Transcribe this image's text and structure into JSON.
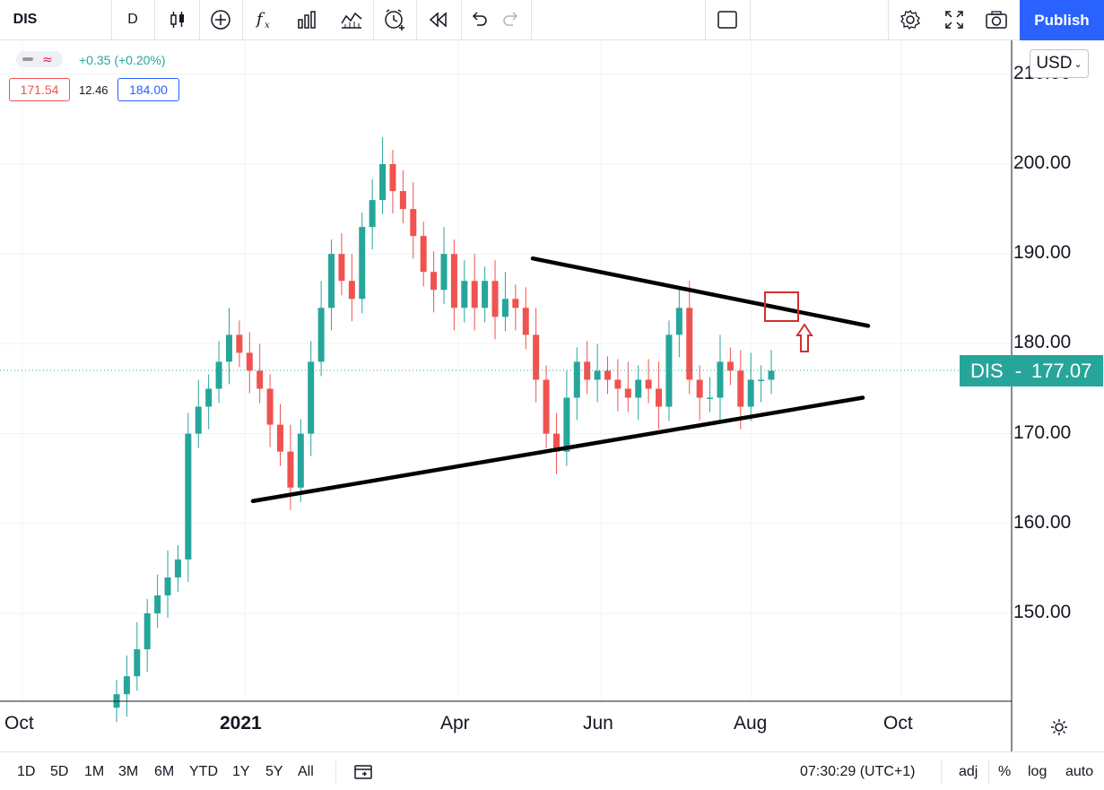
{
  "toolbar": {
    "symbol": "DIS",
    "interval": "D",
    "icons": [
      "candles-icon",
      "add-compare-icon",
      "indicators-icon",
      "templates-icon",
      "replay-chart-icon",
      "alert-icon",
      "replay-icon",
      "undo-icon",
      "redo-icon",
      "layout-icon",
      "settings-icon",
      "fullscreen-icon",
      "camera-icon"
    ],
    "publish_label": "Publish"
  },
  "legend": {
    "change": "+0.35 (+0.20%)",
    "sell_price": "171.54",
    "spread": "12.46",
    "buy_price": "184.00"
  },
  "currency": "USD",
  "price_tag": {
    "symbol": "DIS",
    "value": "177.07"
  },
  "timezone": "07:30:29 (UTC+1)",
  "ranges": [
    "1D",
    "5D",
    "1M",
    "3M",
    "6M",
    "YTD",
    "1Y",
    "5Y",
    "All"
  ],
  "bottom_right": {
    "adj": "adj",
    "percent": "%",
    "log": "log",
    "auto": "auto"
  },
  "colors": {
    "up": "#26a69a",
    "down": "#ef5350",
    "accent": "#2962ff",
    "annotation": "#d32f2f"
  },
  "chart_data": {
    "type": "candlestick",
    "symbol": "DIS",
    "interval": "1D",
    "y_ticks": [
      "210.00",
      "200.00",
      "190.00",
      "180.00",
      "170.00",
      "160.00",
      "150.00"
    ],
    "x_ticks": [
      "Oct",
      "2021",
      "Apr",
      "Jun",
      "Aug",
      "Oct"
    ],
    "ylim": [
      140,
      212
    ],
    "last_price": 177.07,
    "series": [
      {
        "name": "DIS",
        "close": [
          141,
          143,
          146,
          150,
          152,
          154,
          156,
          170,
          173,
          175,
          178,
          181,
          179,
          177,
          175,
          171,
          168,
          164,
          170,
          178,
          184,
          190,
          187,
          185,
          193,
          196,
          200,
          197,
          195,
          192,
          188,
          186,
          190,
          184,
          187,
          184,
          187,
          183,
          185,
          184,
          181,
          176,
          170,
          168,
          174,
          178,
          176,
          177,
          176,
          175,
          174,
          176,
          175,
          173,
          181,
          184,
          176,
          174,
          174,
          178,
          177,
          173,
          176,
          176,
          177
        ]
      }
    ],
    "trendlines": [
      {
        "from": [
          "Dec 2020",
          162.5
        ],
        "to": [
          "Sep 2021",
          174
        ]
      },
      {
        "from": [
          "May 2021",
          189.5
        ],
        "to": [
          "Sep 2021",
          182
        ]
      }
    ]
  }
}
